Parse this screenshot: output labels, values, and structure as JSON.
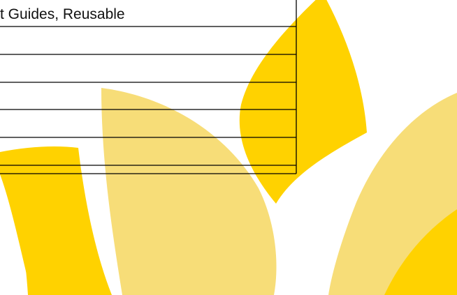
{
  "heading": "t Guides, Reusable"
}
